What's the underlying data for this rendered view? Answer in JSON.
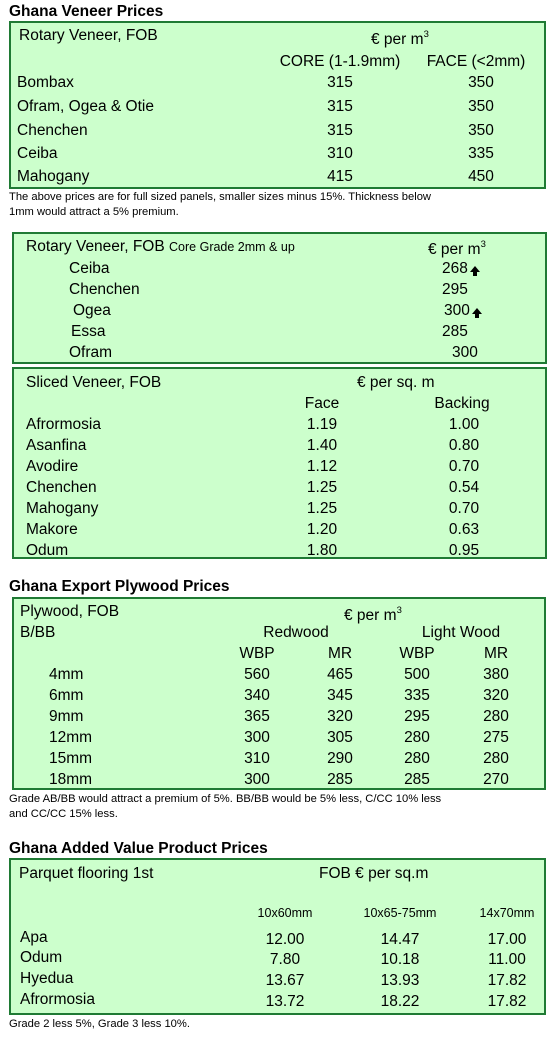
{
  "veneer": {
    "heading": "Ghana Veneer Prices",
    "title": "Rotary Veneer, FOB",
    "unit": "€ per m",
    "unit_sup": "3",
    "col1": "CORE (1-1.9mm)",
    "col2": "FACE (<2mm)",
    "rows": [
      {
        "name": "Bombax",
        "core": "315",
        "face": "350"
      },
      {
        "name": "Ofram, Ogea  & Otie",
        "core": "315",
        "face": "350"
      },
      {
        "name": "Chenchen",
        "core": "315",
        "face": "350"
      },
      {
        "name": "Ceiba",
        "core": "310",
        "face": "335"
      },
      {
        "name": "Mahogany",
        "core": "415",
        "face": "450"
      }
    ],
    "note_line1": "The above prices are for full sized panels, smaller sizes minus 15%. Thickness below",
    "note_line2": "1mm would attract a 5% premium."
  },
  "rotary2": {
    "title": "Rotary Veneer, FOB",
    "subtitle": "Core Grade 2mm & up",
    "unit": "€ per m",
    "unit_sup": "3",
    "rows": [
      {
        "name": "Ceiba",
        "price": "268",
        "arrow": "up"
      },
      {
        "name": "Chenchen",
        "price": "295",
        "arrow": ""
      },
      {
        "name": "Ogea",
        "price": "300",
        "arrow": "up"
      },
      {
        "name": "Essa",
        "price": "285",
        "arrow": ""
      },
      {
        "name": "Ofram",
        "price": "300",
        "arrow": ""
      }
    ]
  },
  "sliced": {
    "title": "Sliced Veneer, FOB",
    "unit": "€ per sq. m",
    "col1": "Face",
    "col2": "Backing",
    "rows": [
      {
        "name": "Afrormosia",
        "face": "1.19",
        "backing": "1.00"
      },
      {
        "name": "Asanfina",
        "face": "1.40",
        "backing": "0.80"
      },
      {
        "name": "Avodire",
        "face": "1.12",
        "backing": "0.70"
      },
      {
        "name": "Chenchen",
        "face": "1.25",
        "backing": "0.54"
      },
      {
        "name": "Mahogany",
        "face": "1.25",
        "backing": "0.70"
      },
      {
        "name": "Makore",
        "face": "1.20",
        "backing": "0.63"
      },
      {
        "name": "Odum",
        "face": "1.80",
        "backing": "0.95"
      }
    ]
  },
  "plywood": {
    "heading": "Ghana Export Plywood Prices",
    "title": "Plywood, FOB",
    "unit": "€ per m",
    "unit_sup": "3",
    "grade": "B/BB",
    "group1": "Redwood",
    "group2": "Light Wood",
    "sub1": "WBP",
    "sub2": "MR",
    "sub3": "WBP",
    "sub4": "MR",
    "rows": [
      {
        "size": "4mm",
        "r_wbp": "560",
        "r_mr": "465",
        "l_wbp": "500",
        "l_mr": "380"
      },
      {
        "size": "6mm",
        "r_wbp": "340",
        "r_mr": "345",
        "l_wbp": "335",
        "l_mr": "320"
      },
      {
        "size": "9mm",
        "r_wbp": "365",
        "r_mr": "320",
        "l_wbp": "295",
        "l_mr": "280"
      },
      {
        "size": "12mm",
        "r_wbp": "300",
        "r_mr": "305",
        "l_wbp": "280",
        "l_mr": "275"
      },
      {
        "size": "15mm",
        "r_wbp": "310",
        "r_mr": "290",
        "l_wbp": "280",
        "l_mr": "280"
      },
      {
        "size": "18mm",
        "r_wbp": "300",
        "r_mr": "285",
        "l_wbp": "285",
        "l_mr": "270"
      }
    ],
    "note_line1": "Grade AB/BB would attract a premium of 5%. BB/BB would be 5% less, C/CC 10% less",
    "note_line2": "and CC/CC 15% less."
  },
  "added": {
    "heading": "Ghana Added Value Product Prices",
    "title": "Parquet flooring 1st",
    "unit": "FOB € per sq.m",
    "col1": "10x60mm",
    "col2": "10x65-75mm",
    "col3": "14x70mm",
    "rows": [
      {
        "name": "Apa",
        "a": "12.00",
        "b": "14.47",
        "c": "17.00"
      },
      {
        "name": "Odum",
        "a": "7.80",
        "b": "10.18",
        "c": "11.00"
      },
      {
        "name": "Hyedua",
        "a": "13.67",
        "b": "13.93",
        "c": "17.82"
      },
      {
        "name": "Afrormosia",
        "a": "13.72",
        "b": "18.22",
        "c": "17.82"
      }
    ],
    "note": "Grade 2 less 5%, Grade 3 less 10%."
  }
}
